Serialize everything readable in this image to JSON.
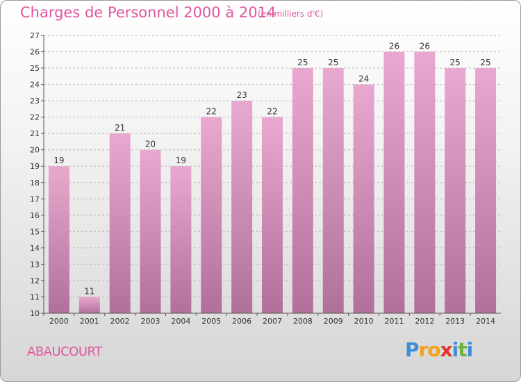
{
  "title": "Charges de Personnel 2000 à 2014",
  "subtitle": "(en milliers d'€)",
  "commune": "ABAUCOURT",
  "logo": {
    "letters": [
      "P",
      "r",
      "o",
      "x",
      "i",
      "t",
      "i"
    ],
    "colors": [
      "#3b8fd4",
      "#f2a21b",
      "#f2a21b",
      "#e8322b",
      "#3b8fd4",
      "#6cb33e",
      "#3b8fd4"
    ]
  },
  "colors": {
    "bar_top": "#e8a8cf",
    "bar_bottom": "#b0709a",
    "accent": "#e0559f"
  },
  "chart_data": {
    "type": "bar",
    "title": "Charges de Personnel 2000 à 2014",
    "subtitle": "(en milliers d'€)",
    "categories": [
      "2000",
      "2001",
      "2002",
      "2003",
      "2004",
      "2005",
      "2006",
      "2007",
      "2008",
      "2009",
      "2010",
      "2011",
      "2012",
      "2013",
      "2014"
    ],
    "values": [
      19,
      11,
      21,
      20,
      19,
      22,
      23,
      22,
      25,
      25,
      24,
      26,
      26,
      25,
      25
    ],
    "ylim": [
      10,
      27
    ],
    "yticks": [
      10,
      11,
      12,
      13,
      14,
      15,
      16,
      17,
      18,
      19,
      20,
      21,
      22,
      23,
      24,
      25,
      26,
      27
    ],
    "grid": "horizontal-dashed",
    "data_labels": true
  }
}
